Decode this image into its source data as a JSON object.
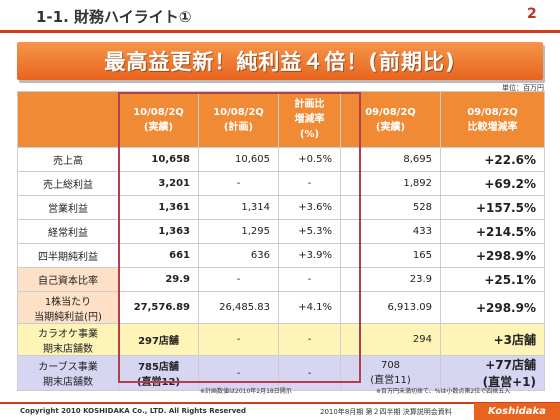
{
  "page": {
    "title": "1-1. 財務ハイライト①",
    "number": "2"
  },
  "banner": "最高益更新！純利益４倍！(前期比)",
  "unit": "単位：百万円",
  "table": {
    "headers": [
      "",
      "10/08/2Q\n(実績)",
      "10/08/2Q\n(計画)",
      "計画比\n増減率\n(%)",
      "09/08/2Q\n(実績)",
      "09/08/2Q\n比較増減率"
    ],
    "rows": [
      {
        "label": "売上高",
        "cells": [
          "10,658",
          "10,605",
          "+0.5%",
          "8,695",
          "+22.6%"
        ]
      },
      {
        "label": "売上総利益",
        "cells": [
          "3,201",
          "-",
          "-",
          "1,892",
          "+69.2%"
        ]
      },
      {
        "label": "営業利益",
        "cells": [
          "1,361",
          "1,314",
          "+3.6%",
          "528",
          "+157.5%"
        ]
      },
      {
        "label": "経常利益",
        "cells": [
          "1,363",
          "1,295",
          "+5.3%",
          "433",
          "+214.5%"
        ]
      },
      {
        "label": "四半期純利益",
        "cells": [
          "661",
          "636",
          "+3.9%",
          "165",
          "+298.9%"
        ]
      },
      {
        "label": "自己資本比率",
        "cells": [
          "29.9",
          "-",
          "-",
          "23.9",
          "+25.1%"
        ]
      },
      {
        "label": "1株当たり\n当期純利益(円)",
        "cells": [
          "27,576.89",
          "26,485.83",
          "+4.1%",
          "6,913.09",
          "+298.9%"
        ]
      },
      {
        "label": "カラオケ事業\n期末店舗数",
        "cells": [
          "297店舗",
          "-",
          "-",
          "294",
          "+3店舗"
        ]
      },
      {
        "label": "カーブス事業\n期末店舗数",
        "cells": [
          "785店舗\n(直営12)",
          "-",
          "-",
          "708\n(直営11)",
          "+77店舗\n(直営+1)"
        ]
      }
    ]
  },
  "footnotes": {
    "left": "※計画数値は2010年2月18日開示",
    "right": "※百万円未満切捨て、%は小数点第2位で四捨五入"
  },
  "footer": {
    "copyright": "Copyright 2010 KOSHIDAKA Co., LTD. All Rights Reserved",
    "center": "2010年8月期 第２四半期 決算説明会資料",
    "logo": "Koshidaka"
  },
  "colors": {
    "accent": "#e8641e",
    "title_red": "#d43c1e",
    "box": "#b0404e",
    "karaoke_row": "#fff4b8",
    "curves_row": "#d6d6f3"
  }
}
